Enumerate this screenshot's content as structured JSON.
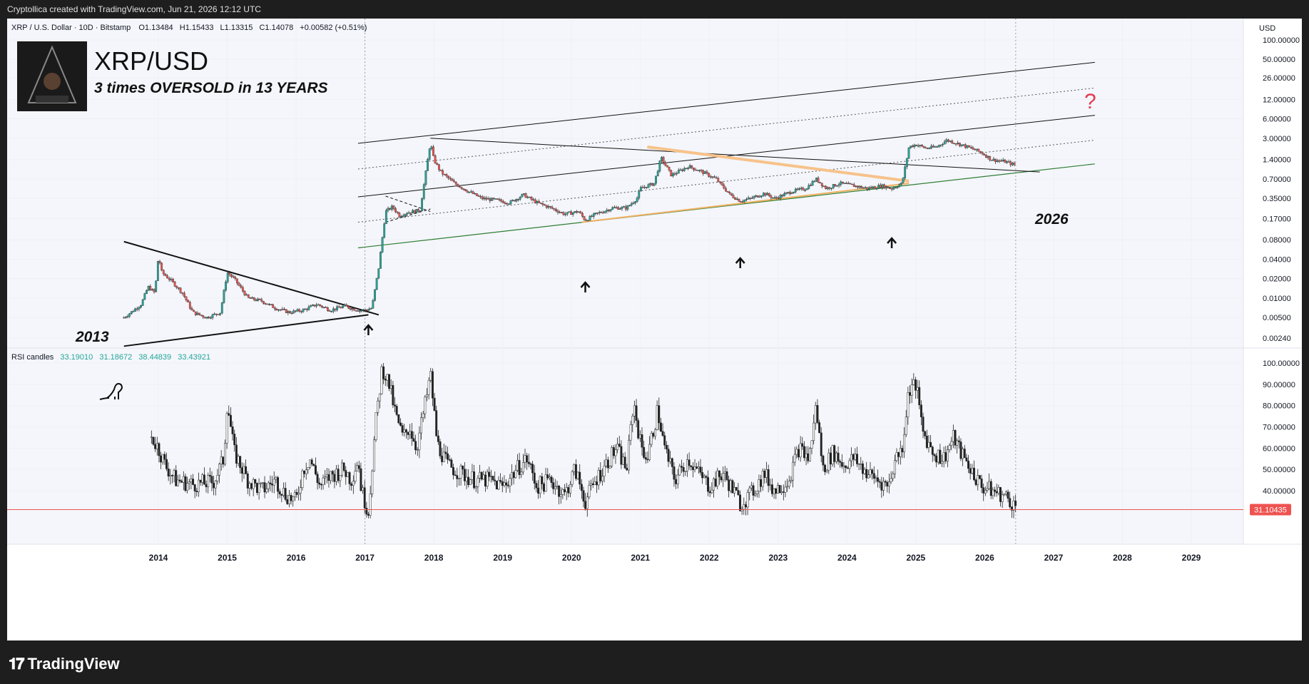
{
  "header": {
    "credit": "Cryptollica created with TradingView.com, Jun 21, 2026 12:12 UTC"
  },
  "footer": {
    "brand": "TradingView",
    "brand_icon": "tradingview-logo-icon"
  },
  "colors": {
    "up": "#26a69a",
    "down": "#ef5350",
    "grid": "#f0f3fa",
    "orange": "#f7c28a",
    "green_line": "#2e7d32",
    "red_question": "#e53950",
    "last_price": "#ef5350"
  },
  "chart_data": [
    {
      "type": "candlestick",
      "symbol_line": {
        "symbol": "XRP / U.S. Dollar · 10D · Bitstamp",
        "o": "O1.13484",
        "h": "H1.15433",
        "l": "L1.13315",
        "c": "C1.14078",
        "chg": "+0.00582 (+0.51%)"
      },
      "title": "XRP/USD",
      "subtitle": "3 times OVERSOLD in 13 YEARS",
      "currency": "USD",
      "y_scale": "log",
      "ylim": [
        0.0018,
        140
      ],
      "y_ticks": [
        "100.00000",
        "50.00000",
        "26.00000",
        "12.00000",
        "6.00000",
        "3.00000",
        "1.40000",
        "0.70000",
        "0.35000",
        "0.17000",
        "0.08000",
        "0.04000",
        "0.02000",
        "0.01000",
        "0.00500",
        "0.00240"
      ],
      "x_ticks": [
        "2014",
        "2015",
        "2016",
        "2017",
        "2018",
        "2019",
        "2020",
        "2021",
        "2022",
        "2023",
        "2024",
        "2025",
        "2026",
        "2027",
        "2028",
        "2029"
      ],
      "xlim": [
        2013.3,
        2030.0
      ],
      "annotations": [
        "2013",
        "2026",
        "?"
      ],
      "price_path": [
        [
          2013.5,
          0.005
        ],
        [
          2013.6,
          0.006
        ],
        [
          2013.75,
          0.008
        ],
        [
          2013.85,
          0.015
        ],
        [
          2013.95,
          0.012
        ],
        [
          2014.0,
          0.045
        ],
        [
          2014.05,
          0.025
        ],
        [
          2014.2,
          0.018
        ],
        [
          2014.35,
          0.012
        ],
        [
          2014.5,
          0.006
        ],
        [
          2014.7,
          0.005
        ],
        [
          2014.9,
          0.006
        ],
        [
          2015.0,
          0.025
        ],
        [
          2015.1,
          0.02
        ],
        [
          2015.3,
          0.01
        ],
        [
          2015.5,
          0.009
        ],
        [
          2015.7,
          0.007
        ],
        [
          2015.9,
          0.006
        ],
        [
          2016.1,
          0.0065
        ],
        [
          2016.3,
          0.008
        ],
        [
          2016.5,
          0.0065
        ],
        [
          2016.7,
          0.0075
        ],
        [
          2016.9,
          0.0065
        ],
        [
          2017.0,
          0.0065
        ],
        [
          2017.1,
          0.007
        ],
        [
          2017.2,
          0.03
        ],
        [
          2017.3,
          0.22
        ],
        [
          2017.4,
          0.26
        ],
        [
          2017.5,
          0.19
        ],
        [
          2017.6,
          0.21
        ],
        [
          2017.8,
          0.23
        ],
        [
          2017.95,
          2.6
        ],
        [
          2018.0,
          1.4
        ],
        [
          2018.1,
          0.9
        ],
        [
          2018.3,
          0.6
        ],
        [
          2018.5,
          0.45
        ],
        [
          2018.7,
          0.35
        ],
        [
          2018.9,
          0.33
        ],
        [
          2019.1,
          0.3
        ],
        [
          2019.3,
          0.4
        ],
        [
          2019.5,
          0.3
        ],
        [
          2019.7,
          0.25
        ],
        [
          2019.9,
          0.2
        ],
        [
          2020.1,
          0.22
        ],
        [
          2020.2,
          0.16
        ],
        [
          2020.35,
          0.2
        ],
        [
          2020.6,
          0.25
        ],
        [
          2020.8,
          0.25
        ],
        [
          2020.95,
          0.35
        ],
        [
          2021.0,
          0.5
        ],
        [
          2021.2,
          0.6
        ],
        [
          2021.3,
          1.5
        ],
        [
          2021.45,
          0.8
        ],
        [
          2021.7,
          1.1
        ],
        [
          2021.9,
          0.9
        ],
        [
          2022.1,
          0.7
        ],
        [
          2022.3,
          0.4
        ],
        [
          2022.45,
          0.32
        ],
        [
          2022.6,
          0.35
        ],
        [
          2022.8,
          0.42
        ],
        [
          2022.95,
          0.35
        ],
        [
          2023.2,
          0.45
        ],
        [
          2023.4,
          0.5
        ],
        [
          2023.55,
          0.7
        ],
        [
          2023.7,
          0.5
        ],
        [
          2023.9,
          0.6
        ],
        [
          2024.1,
          0.55
        ],
        [
          2024.3,
          0.5
        ],
        [
          2024.5,
          0.55
        ],
        [
          2024.65,
          0.5
        ],
        [
          2024.8,
          0.6
        ],
        [
          2024.9,
          2.2
        ],
        [
          2025.0,
          2.4
        ],
        [
          2025.15,
          2.1
        ],
        [
          2025.3,
          2.2
        ],
        [
          2025.45,
          2.8
        ],
        [
          2025.6,
          2.5
        ],
        [
          2025.8,
          2.1
        ],
        [
          2025.95,
          1.8
        ],
        [
          2026.1,
          1.4
        ],
        [
          2026.3,
          1.3
        ],
        [
          2026.45,
          1.14
        ]
      ]
    },
    {
      "type": "line",
      "name": "RSI candles",
      "values_label": [
        "33.19010",
        "31.18672",
        "38.44839",
        "33.43921"
      ],
      "ylim": [
        25,
        102
      ],
      "y_ticks": [
        "100.00000",
        "90.00000",
        "80.00000",
        "70.00000",
        "60.00000",
        "50.00000",
        "40.00000"
      ],
      "last_value": "31.10435",
      "rsi_path": [
        [
          2013.9,
          65
        ],
        [
          2014.0,
          60
        ],
        [
          2014.1,
          52
        ],
        [
          2014.25,
          45
        ],
        [
          2014.5,
          43
        ],
        [
          2014.8,
          44
        ],
        [
          2014.95,
          55
        ],
        [
          2015.0,
          82
        ],
        [
          2015.1,
          58
        ],
        [
          2015.3,
          45
        ],
        [
          2015.5,
          40
        ],
        [
          2015.7,
          45
        ],
        [
          2015.85,
          38
        ],
        [
          2016.0,
          35
        ],
        [
          2016.1,
          50
        ],
        [
          2016.2,
          55
        ],
        [
          2016.35,
          42
        ],
        [
          2016.5,
          47
        ],
        [
          2016.7,
          50
        ],
        [
          2016.8,
          45
        ],
        [
          2016.9,
          55
        ],
        [
          2016.95,
          40
        ],
        [
          2017.05,
          30
        ],
        [
          2017.15,
          70
        ],
        [
          2017.25,
          98
        ],
        [
          2017.35,
          90
        ],
        [
          2017.45,
          75
        ],
        [
          2017.55,
          65
        ],
        [
          2017.65,
          70
        ],
        [
          2017.75,
          60
        ],
        [
          2017.9,
          85
        ],
        [
          2017.95,
          95
        ],
        [
          2018.05,
          62
        ],
        [
          2018.2,
          52
        ],
        [
          2018.4,
          48
        ],
        [
          2018.6,
          45
        ],
        [
          2018.8,
          45
        ],
        [
          2019.0,
          42
        ],
        [
          2019.2,
          50
        ],
        [
          2019.35,
          55
        ],
        [
          2019.5,
          42
        ],
        [
          2019.7,
          45
        ],
        [
          2019.9,
          38
        ],
        [
          2020.05,
          50
        ],
        [
          2020.2,
          35
        ],
        [
          2020.35,
          45
        ],
        [
          2020.55,
          55
        ],
        [
          2020.65,
          60
        ],
        [
          2020.8,
          50
        ],
        [
          2020.9,
          82
        ],
        [
          2021.0,
          62
        ],
        [
          2021.1,
          55
        ],
        [
          2021.25,
          78
        ],
        [
          2021.35,
          60
        ],
        [
          2021.5,
          45
        ],
        [
          2021.7,
          55
        ],
        [
          2021.85,
          48
        ],
        [
          2022.0,
          42
        ],
        [
          2022.2,
          48
        ],
        [
          2022.35,
          40
        ],
        [
          2022.45,
          34
        ],
        [
          2022.6,
          38
        ],
        [
          2022.8,
          48
        ],
        [
          2022.95,
          40
        ],
        [
          2023.15,
          45
        ],
        [
          2023.3,
          60
        ],
        [
          2023.45,
          55
        ],
        [
          2023.55,
          80
        ],
        [
          2023.65,
          50
        ],
        [
          2023.8,
          58
        ],
        [
          2023.95,
          52
        ],
        [
          2024.1,
          55
        ],
        [
          2024.3,
          48
        ],
        [
          2024.45,
          45
        ],
        [
          2024.6,
          42
        ],
        [
          2024.7,
          55
        ],
        [
          2024.8,
          60
        ],
        [
          2024.9,
          88
        ],
        [
          2025.0,
          90
        ],
        [
          2025.1,
          68
        ],
        [
          2025.25,
          58
        ],
        [
          2025.4,
          55
        ],
        [
          2025.55,
          65
        ],
        [
          2025.65,
          58
        ],
        [
          2025.8,
          50
        ],
        [
          2025.95,
          42
        ],
        [
          2026.1,
          40
        ],
        [
          2026.25,
          38
        ],
        [
          2026.35,
          36
        ],
        [
          2026.45,
          32
        ]
      ]
    }
  ]
}
